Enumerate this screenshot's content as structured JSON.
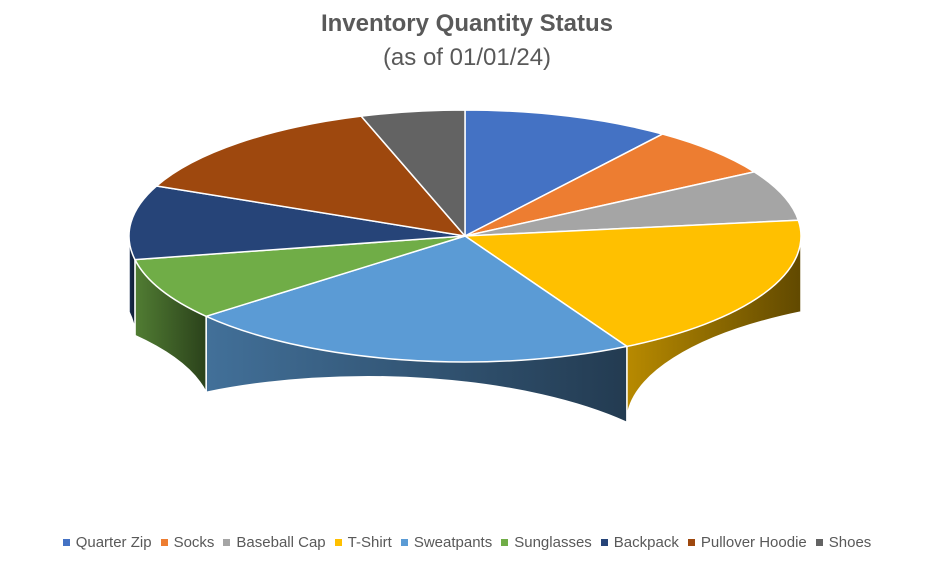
{
  "chart_data": {
    "type": "pie",
    "title": "Inventory Quantity Status",
    "subtitle": "(as of 01/01/24)",
    "three_d": true,
    "start_angle_deg": 90,
    "direction": "clockwise",
    "legend_position": "bottom",
    "slices": [
      {
        "label": "Quarter Zip",
        "value": 10.0,
        "color": "#4472C4"
      },
      {
        "label": "Socks",
        "value": 6.5,
        "color": "#ED7D31"
      },
      {
        "label": "Baseball Cap",
        "value": 6.5,
        "color": "#A5A5A5"
      },
      {
        "label": "T-Shirt",
        "value": 19.0,
        "color": "#FFC000"
      },
      {
        "label": "Sweatpants",
        "value": 22.0,
        "color": "#5B9BD5"
      },
      {
        "label": "Sunglasses",
        "value": 8.0,
        "color": "#70AD47"
      },
      {
        "label": "Backpack",
        "value": 9.5,
        "color": "#264478"
      },
      {
        "label": "Pullover Hoodie",
        "value": 13.5,
        "color": "#9E480E"
      },
      {
        "label": "Shoes",
        "value": 5.0,
        "color": "#636363"
      }
    ]
  }
}
